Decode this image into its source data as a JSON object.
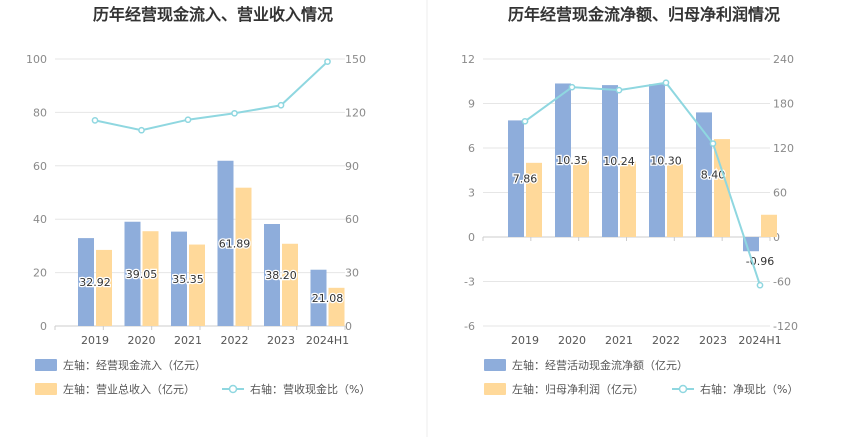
{
  "chart_data": [
    {
      "type": "bar",
      "title": "历年经营现金流入、营业收入情况",
      "categories": [
        "2019",
        "2020",
        "2021",
        "2022",
        "2023",
        "2024H1"
      ],
      "left_axis": {
        "ylim": [
          0,
          100
        ],
        "ticks": [
          "0",
          "20",
          "40",
          "60",
          "80",
          "100"
        ]
      },
      "right_axis": {
        "ylim": [
          0,
          150
        ],
        "ticks": [
          "0",
          "30",
          "60",
          "90",
          "120",
          "150"
        ]
      },
      "series": [
        {
          "name": "左轴：经营现金流入（亿元）",
          "axis": "left",
          "kind": "bar",
          "color": "#8EADDB",
          "values": [
            32.92,
            39.05,
            35.35,
            61.89,
            38.2,
            21.08
          ],
          "labels": [
            "32.92",
            "39.05",
            "35.35",
            "61.89",
            "38.20",
            "21.08"
          ]
        },
        {
          "name": "左轴：营业总收入（亿元）",
          "axis": "left",
          "kind": "bar",
          "color": "#FFD99A",
          "values": [
            28.5,
            35.5,
            30.5,
            51.8,
            30.8,
            14.3
          ]
        },
        {
          "name": "右轴：营收现金比（%）",
          "axis": "right",
          "kind": "line",
          "color": "#8FD7E0",
          "values": [
            115.5,
            110.0,
            115.9,
            119.5,
            124.0,
            148.5
          ]
        }
      ]
    },
    {
      "type": "bar",
      "title": "历年经营现金流净额、归母净利润情况",
      "categories": [
        "2019",
        "2020",
        "2021",
        "2022",
        "2023",
        "2024H1"
      ],
      "left_axis": {
        "ylim": [
          -6,
          12
        ],
        "ticks": [
          "-6",
          "-3",
          "0",
          "3",
          "6",
          "9",
          "12"
        ]
      },
      "right_axis": {
        "ylim": [
          -120,
          240
        ],
        "ticks": [
          "-120",
          "-60",
          "0",
          "60",
          "120",
          "180",
          "240"
        ]
      },
      "series": [
        {
          "name": "左轴：经营活动现金流净额（亿元）",
          "axis": "left",
          "kind": "bar",
          "color": "#8EADDB",
          "values": [
            7.86,
            10.35,
            10.24,
            10.3,
            8.4,
            -0.96
          ],
          "labels": [
            "7.86",
            "10.35",
            "10.24",
            "10.30",
            "8.40",
            "-0.96"
          ]
        },
        {
          "name": "左轴：归母净利润（亿元）",
          "axis": "left",
          "kind": "bar",
          "color": "#FFD99A",
          "values": [
            5.0,
            5.1,
            5.1,
            4.9,
            6.6,
            1.5
          ]
        },
        {
          "name": "右轴：净现比（%）",
          "axis": "right",
          "kind": "line",
          "color": "#8FD7E0",
          "values": [
            156,
            202,
            198,
            208,
            126,
            -65
          ]
        }
      ]
    }
  ]
}
